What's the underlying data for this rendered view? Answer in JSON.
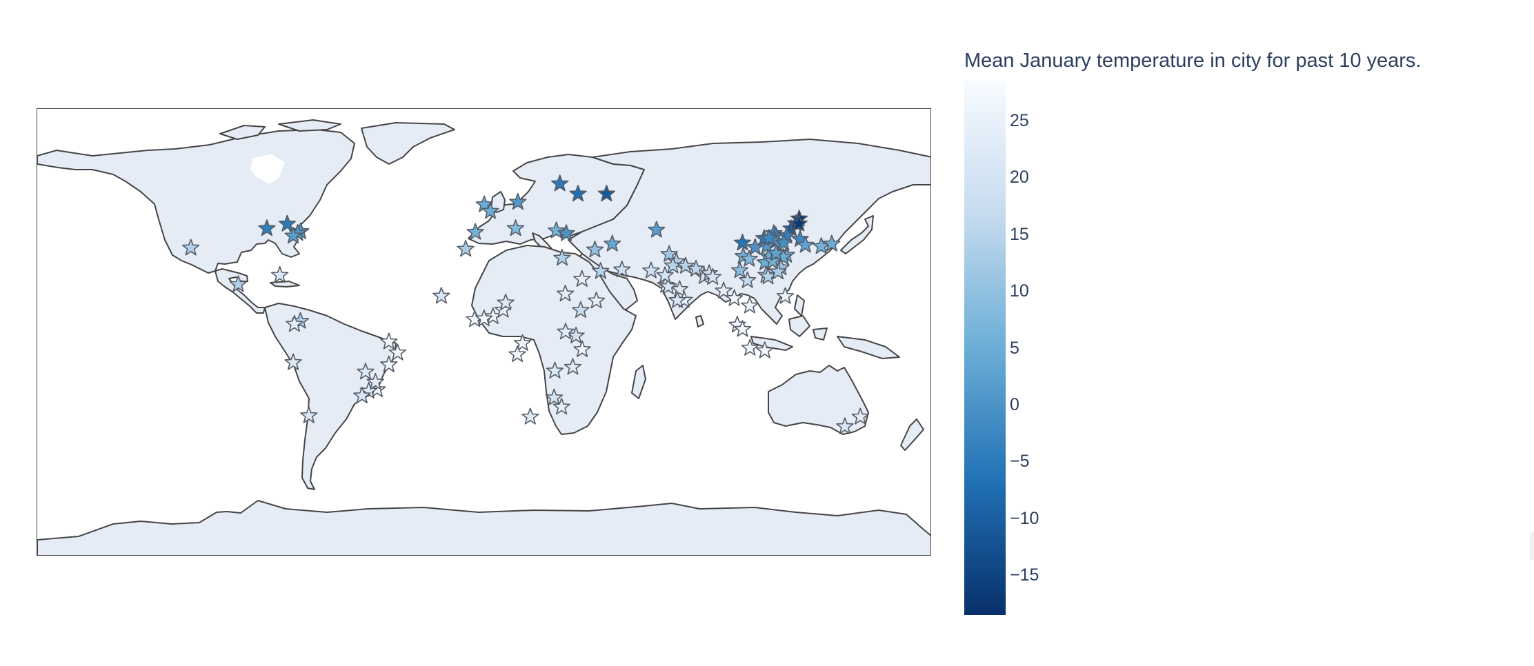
{
  "colorbar": {
    "title": "Mean January temperature in city for past 10 years.",
    "min": -18.5,
    "max": 28.5,
    "colors": [
      "#08306b",
      "#2171b5",
      "#6baed6",
      "#c6dbef",
      "#f7fbff"
    ],
    "ticks": [
      {
        "value": 25,
        "label": "25"
      },
      {
        "value": 20,
        "label": "20"
      },
      {
        "value": 15,
        "label": "15"
      },
      {
        "value": 10,
        "label": "10"
      },
      {
        "value": 5,
        "label": "5"
      },
      {
        "value": 0,
        "label": "0"
      },
      {
        "value": -5,
        "label": "−5"
      },
      {
        "value": -10,
        "label": "−10"
      },
      {
        "value": -15,
        "label": "−15"
      }
    ]
  },
  "map": {
    "projection": "equirectangular",
    "land_color": "#e5ecf6",
    "coast_color": "#444444",
    "marker_symbol": "star"
  },
  "chart_data": {
    "type": "scatter",
    "cities": [
      {
        "lon": -118.2,
        "lat": 34.1,
        "value": 14
      },
      {
        "lon": -99.1,
        "lat": 19.4,
        "value": 14
      },
      {
        "lon": -87.6,
        "lat": 41.9,
        "value": -4
      },
      {
        "lon": -79.4,
        "lat": 43.7,
        "value": -5
      },
      {
        "lon": -74.0,
        "lat": 40.7,
        "value": 1
      },
      {
        "lon": -75.2,
        "lat": 40.0,
        "value": 1
      },
      {
        "lon": -77.0,
        "lat": 38.9,
        "value": 2
      },
      {
        "lon": -82.4,
        "lat": 23.1,
        "value": 22
      },
      {
        "lon": -74.1,
        "lat": 4.6,
        "value": 14
      },
      {
        "lon": -76.5,
        "lat": 3.4,
        "value": 24
      },
      {
        "lon": -77.0,
        "lat": -12.0,
        "value": 22
      },
      {
        "lon": -70.7,
        "lat": -33.4,
        "value": 21
      },
      {
        "lon": -43.2,
        "lat": -22.9,
        "value": 26
      },
      {
        "lon": -46.6,
        "lat": -23.5,
        "value": 23
      },
      {
        "lon": -43.9,
        "lat": -19.9,
        "value": 23
      },
      {
        "lon": -49.3,
        "lat": -25.4,
        "value": 21
      },
      {
        "lon": -38.5,
        "lat": -3.7,
        "value": 27
      },
      {
        "lon": -35.0,
        "lat": -8.1,
        "value": 27
      },
      {
        "lon": -38.5,
        "lat": -12.9,
        "value": 26
      },
      {
        "lon": -47.9,
        "lat": -15.8,
        "value": 22
      },
      {
        "lon": -0.1,
        "lat": 51.5,
        "value": 5
      },
      {
        "lon": 2.35,
        "lat": 48.85,
        "value": 5
      },
      {
        "lon": -3.7,
        "lat": 40.4,
        "value": 6
      },
      {
        "lon": 13.4,
        "lat": 52.5,
        "value": 1
      },
      {
        "lon": 12.5,
        "lat": 41.9,
        "value": 8
      },
      {
        "lon": 37.6,
        "lat": 55.8,
        "value": -7
      },
      {
        "lon": 30.3,
        "lat": 59.9,
        "value": -5
      },
      {
        "lon": 49.1,
        "lat": 55.8,
        "value": -11
      },
      {
        "lon": 28.9,
        "lat": 41.0,
        "value": 6
      },
      {
        "lon": 32.9,
        "lat": 39.9,
        "value": 0
      },
      {
        "lon": 31.2,
        "lat": 30.0,
        "value": 14
      },
      {
        "lon": 51.4,
        "lat": 35.7,
        "value": 4
      },
      {
        "lon": 44.4,
        "lat": 33.3,
        "value": 10
      },
      {
        "lon": 46.7,
        "lat": 24.7,
        "value": 15
      },
      {
        "lon": 39.2,
        "lat": 21.5,
        "value": 24
      },
      {
        "lon": 55.3,
        "lat": 25.3,
        "value": 19
      },
      {
        "lon": 69.2,
        "lat": 41.3,
        "value": 2
      },
      {
        "lon": 67.0,
        "lat": 24.9,
        "value": 19
      },
      {
        "lon": 74.3,
        "lat": 31.5,
        "value": 12
      },
      {
        "lon": 77.2,
        "lat": 28.6,
        "value": 14
      },
      {
        "lon": 72.9,
        "lat": 19.1,
        "value": 24
      },
      {
        "lon": 88.4,
        "lat": 22.6,
        "value": 20
      },
      {
        "lon": 78.5,
        "lat": 17.4,
        "value": 22
      },
      {
        "lon": 80.3,
        "lat": 13.1,
        "value": 25
      },
      {
        "lon": 77.6,
        "lat": 12.97,
        "value": 21
      },
      {
        "lon": 73.9,
        "lat": 18.5,
        "value": 21
      },
      {
        "lon": 72.6,
        "lat": 23.0,
        "value": 20
      },
      {
        "lon": 75.8,
        "lat": 26.9,
        "value": 15
      },
      {
        "lon": 80.9,
        "lat": 26.8,
        "value": 15
      },
      {
        "lon": 85.1,
        "lat": 25.6,
        "value": 16
      },
      {
        "lon": 90.4,
        "lat": 23.8,
        "value": 19
      },
      {
        "lon": 91.8,
        "lat": 22.3,
        "value": 20
      },
      {
        "lon": 96.2,
        "lat": 16.8,
        "value": 25
      },
      {
        "lon": 100.5,
        "lat": 13.75,
        "value": 27
      },
      {
        "lon": 106.7,
        "lat": 10.8,
        "value": 26
      },
      {
        "lon": 105.8,
        "lat": 21.0,
        "value": 17
      },
      {
        "lon": 101.7,
        "lat": 3.1,
        "value": 27
      },
      {
        "lon": 103.8,
        "lat": 1.35,
        "value": 27
      },
      {
        "lon": 106.8,
        "lat": -6.2,
        "value": 27
      },
      {
        "lon": 112.75,
        "lat": -7.25,
        "value": 27
      },
      {
        "lon": 121.0,
        "lat": 14.6,
        "value": 26
      },
      {
        "lon": 116.4,
        "lat": 39.9,
        "value": -3
      },
      {
        "lon": 117.2,
        "lat": 39.1,
        "value": -3
      },
      {
        "lon": 121.5,
        "lat": 31.2,
        "value": 5
      },
      {
        "lon": 114.3,
        "lat": 30.6,
        "value": 4
      },
      {
        "lon": 104.1,
        "lat": 30.7,
        "value": 6
      },
      {
        "lon": 106.5,
        "lat": 29.6,
        "value": 8
      },
      {
        "lon": 113.3,
        "lat": 23.1,
        "value": 14
      },
      {
        "lon": 114.1,
        "lat": 22.5,
        "value": 15
      },
      {
        "lon": 108.9,
        "lat": 34.3,
        "value": 0
      },
      {
        "lon": 123.4,
        "lat": 41.8,
        "value": -11
      },
      {
        "lon": 126.6,
        "lat": 45.8,
        "value": -18
      },
      {
        "lon": 125.3,
        "lat": 43.9,
        "value": -15
      },
      {
        "lon": 126.5,
        "lat": 43.8,
        "value": -17
      },
      {
        "lon": 118.8,
        "lat": 32.1,
        "value": 3
      },
      {
        "lon": 120.2,
        "lat": 30.3,
        "value": 5
      },
      {
        "lon": 117.0,
        "lat": 36.7,
        "value": 0
      },
      {
        "lon": 113.6,
        "lat": 34.8,
        "value": 1
      },
      {
        "lon": 112.5,
        "lat": 37.9,
        "value": -5
      },
      {
        "lon": 114.5,
        "lat": 38.0,
        "value": -2
      },
      {
        "lon": 121.6,
        "lat": 38.9,
        "value": -4
      },
      {
        "lon": 120.4,
        "lat": 36.1,
        "value": -1
      },
      {
        "lon": 103.8,
        "lat": 36.1,
        "value": -6
      },
      {
        "lon": 102.7,
        "lat": 25.0,
        "value": 9
      },
      {
        "lon": 119.3,
        "lat": 26.1,
        "value": 11
      },
      {
        "lon": 118.1,
        "lat": 24.5,
        "value": 13
      },
      {
        "lon": 112.9,
        "lat": 28.2,
        "value": 5
      },
      {
        "lon": 115.9,
        "lat": 28.7,
        "value": 6
      },
      {
        "lon": 117.3,
        "lat": 31.9,
        "value": 3
      },
      {
        "lon": 126.98,
        "lat": 37.57,
        "value": -2
      },
      {
        "lon": 129.1,
        "lat": 35.2,
        "value": 3
      },
      {
        "lon": 135.5,
        "lat": 34.7,
        "value": 6
      },
      {
        "lon": 139.7,
        "lat": 35.7,
        "value": 5
      },
      {
        "lon": -17.4,
        "lat": 14.7,
        "value": 21
      },
      {
        "lon": -4.0,
        "lat": 5.3,
        "value": 27
      },
      {
        "lon": 3.4,
        "lat": 6.5,
        "value": 27
      },
      {
        "lon": 7.5,
        "lat": 9.1,
        "value": 26
      },
      {
        "lon": 8.5,
        "lat": 12.0,
        "value": 22
      },
      {
        "lon": -0.2,
        "lat": 5.6,
        "value": 27
      },
      {
        "lon": 32.5,
        "lat": 15.6,
        "value": 23
      },
      {
        "lon": 38.7,
        "lat": 9.0,
        "value": 17
      },
      {
        "lon": 36.8,
        "lat": -1.3,
        "value": 19
      },
      {
        "lon": 39.3,
        "lat": -6.8,
        "value": 27
      },
      {
        "lon": 32.6,
        "lat": 0.3,
        "value": 23
      },
      {
        "lon": 15.3,
        "lat": -4.3,
        "value": 26
      },
      {
        "lon": 13.2,
        "lat": -8.8,
        "value": 27
      },
      {
        "lon": 28.0,
        "lat": -26.2,
        "value": 20
      },
      {
        "lon": 31.0,
        "lat": -29.9,
        "value": 24
      },
      {
        "lon": 18.4,
        "lat": -33.9,
        "value": 22
      },
      {
        "lon": 45.0,
        "lat": 12.8,
        "value": 25
      },
      {
        "lon": 28.3,
        "lat": -15.4,
        "value": 22
      },
      {
        "lon": 35.5,
        "lat": -13.9,
        "value": 22
      },
      {
        "lon": -7.6,
        "lat": 33.6,
        "value": 13
      },
      {
        "lon": 151.2,
        "lat": -33.9,
        "value": 23
      },
      {
        "lon": 145.0,
        "lat": -37.8,
        "value": 21
      }
    ]
  }
}
